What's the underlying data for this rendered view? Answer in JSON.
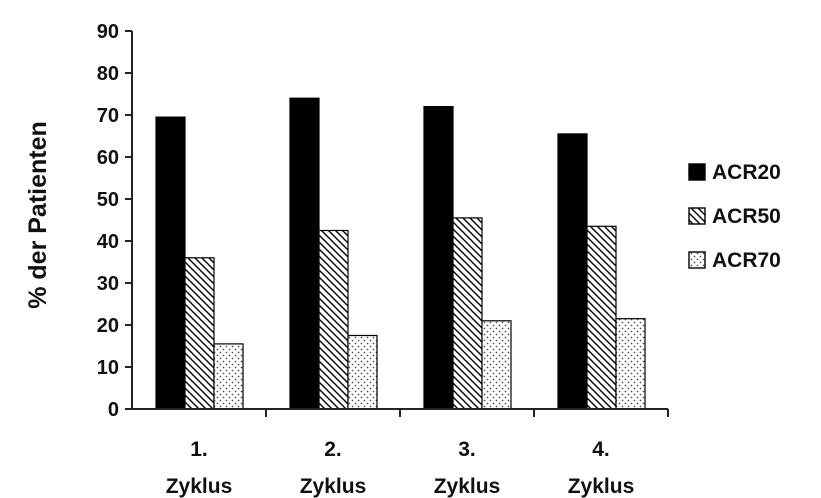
{
  "chart_data": {
    "type": "bar",
    "title": "",
    "xlabel": "",
    "ylabel": "% der Patienten",
    "ylim": [
      0,
      90
    ],
    "ytick_step": 10,
    "grid": false,
    "legend_position": "right",
    "categories": [
      [
        "1.",
        "Zyklus"
      ],
      [
        "2.",
        "Zyklus"
      ],
      [
        "3.",
        "Zyklus"
      ],
      [
        "4.",
        "Zyklus"
      ]
    ],
    "series": [
      {
        "name": "ACR20",
        "values": [
          69.5,
          74,
          72,
          65.5
        ],
        "fill": "solid-black"
      },
      {
        "name": "ACR50",
        "values": [
          36,
          42.5,
          45.5,
          43.5
        ],
        "fill": "diagonal-hatch"
      },
      {
        "name": "ACR70",
        "values": [
          15.5,
          17.5,
          21,
          21.5
        ],
        "fill": "dotted"
      }
    ],
    "colors": {
      "bar_outline": "#000000",
      "solid": "#000000",
      "hatch_line": "#000000",
      "dot": "#555555",
      "axis": "#222222"
    }
  }
}
